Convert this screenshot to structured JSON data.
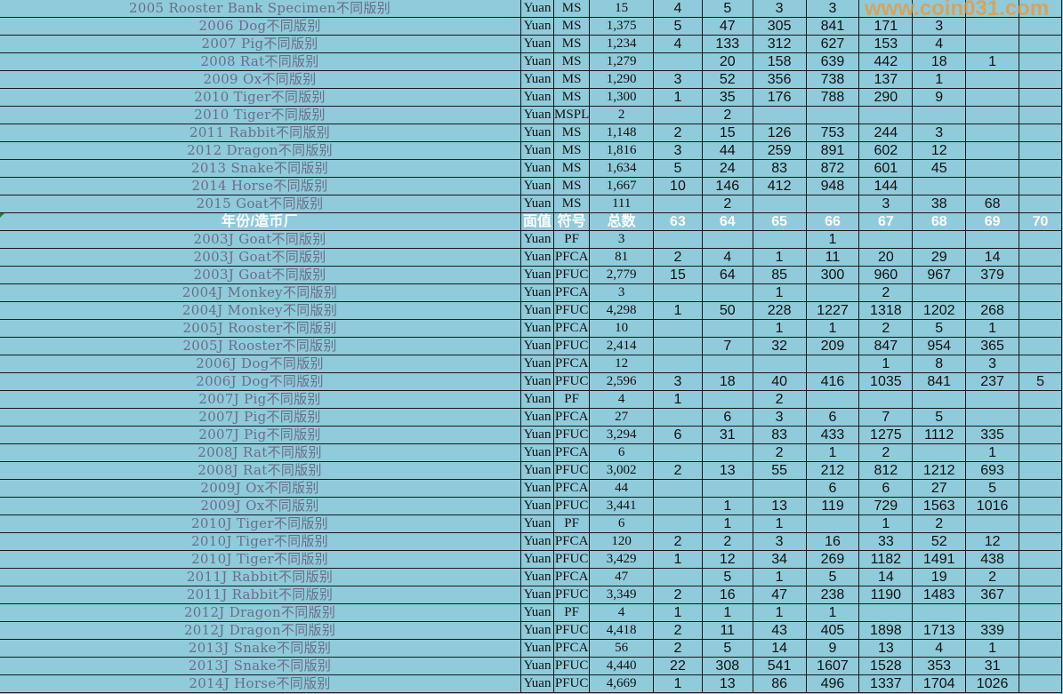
{
  "header": {
    "name": "年份/造币厂",
    "unit": "面值",
    "symbol": "符号",
    "total": "总数",
    "grades": [
      "63",
      "64",
      "65",
      "66",
      "67",
      "68",
      "69",
      "70"
    ]
  },
  "header_row_index": 12,
  "rows": [
    {
      "name": "2005 Rooster Bank Specimen不同版别",
      "unit": "Yuan",
      "symbol": "MS",
      "total": "15",
      "grades": [
        "4",
        "5",
        "3",
        "3",
        "",
        "",
        "",
        ""
      ]
    },
    {
      "name": "2006 Dog不同版别",
      "unit": "Yuan",
      "symbol": "MS",
      "total": "1,375",
      "grades": [
        "5",
        "47",
        "305",
        "841",
        "171",
        "3",
        "",
        ""
      ]
    },
    {
      "name": "2007 Pig不同版别",
      "unit": "Yuan",
      "symbol": "MS",
      "total": "1,234",
      "grades": [
        "4",
        "133",
        "312",
        "627",
        "153",
        "4",
        "",
        ""
      ]
    },
    {
      "name": "2008 Rat不同版别",
      "unit": "Yuan",
      "symbol": "MS",
      "total": "1,279",
      "grades": [
        "",
        "20",
        "158",
        "639",
        "442",
        "18",
        "1",
        ""
      ]
    },
    {
      "name": "2009 Ox不同版别",
      "unit": "Yuan",
      "symbol": "MS",
      "total": "1,290",
      "grades": [
        "3",
        "52",
        "356",
        "738",
        "137",
        "1",
        "",
        ""
      ]
    },
    {
      "name": "2010 Tiger不同版别",
      "unit": "Yuan",
      "symbol": "MS",
      "total": "1,300",
      "grades": [
        "1",
        "35",
        "176",
        "788",
        "290",
        "9",
        "",
        ""
      ]
    },
    {
      "name": "2010 Tiger不同版别",
      "unit": "Yuan",
      "symbol": "MSPL",
      "total": "2",
      "grades": [
        "",
        "2",
        "",
        "",
        "",
        "",
        "",
        ""
      ]
    },
    {
      "name": "2011 Rabbit不同版别",
      "unit": "Yuan",
      "symbol": "MS",
      "total": "1,148",
      "grades": [
        "2",
        "15",
        "126",
        "753",
        "244",
        "3",
        "",
        ""
      ]
    },
    {
      "name": "2012 Dragon不同版别",
      "unit": "Yuan",
      "symbol": "MS",
      "total": "1,816",
      "grades": [
        "3",
        "44",
        "259",
        "891",
        "602",
        "12",
        "",
        ""
      ]
    },
    {
      "name": "2013 Snake不同版别",
      "unit": "Yuan",
      "symbol": "MS",
      "total": "1,634",
      "grades": [
        "5",
        "24",
        "83",
        "872",
        "601",
        "45",
        "",
        ""
      ]
    },
    {
      "name": "2014 Horse不同版别",
      "unit": "Yuan",
      "symbol": "MS",
      "total": "1,667",
      "grades": [
        "10",
        "146",
        "412",
        "948",
        "144",
        "",
        "",
        ""
      ]
    },
    {
      "name": "2015 Goat不同版别",
      "unit": "Yuan",
      "symbol": "MS",
      "total": "111",
      "grades": [
        "",
        "2",
        "",
        "",
        "3",
        "38",
        "68",
        ""
      ]
    },
    {
      "name": "2003J Goat不同版别",
      "unit": "Yuan",
      "symbol": "PF",
      "total": "3",
      "grades": [
        "",
        "",
        "",
        "1",
        "",
        "",
        "",
        ""
      ]
    },
    {
      "name": "2003J Goat不同版别",
      "unit": "Yuan",
      "symbol": "PFCA",
      "total": "81",
      "grades": [
        "2",
        "4",
        "1",
        "11",
        "20",
        "29",
        "14",
        ""
      ]
    },
    {
      "name": "2003J Goat不同版别",
      "unit": "Yuan",
      "symbol": "PFUC",
      "total": "2,779",
      "grades": [
        "15",
        "64",
        "85",
        "300",
        "960",
        "967",
        "379",
        ""
      ]
    },
    {
      "name": "2004J Monkey不同版别",
      "unit": "Yuan",
      "symbol": "PFCA",
      "total": "3",
      "grades": [
        "",
        "",
        "1",
        "",
        "2",
        "",
        "",
        ""
      ]
    },
    {
      "name": "2004J Monkey不同版别",
      "unit": "Yuan",
      "symbol": "PFUC",
      "total": "4,298",
      "grades": [
        "1",
        "50",
        "228",
        "1227",
        "1318",
        "1202",
        "268",
        ""
      ]
    },
    {
      "name": "2005J Rooster不同版别",
      "unit": "Yuan",
      "symbol": "PFCA",
      "total": "10",
      "grades": [
        "",
        "",
        "1",
        "1",
        "2",
        "5",
        "1",
        ""
      ]
    },
    {
      "name": "2005J Rooster不同版别",
      "unit": "Yuan",
      "symbol": "PFUC",
      "total": "2,414",
      "grades": [
        "",
        "7",
        "32",
        "209",
        "847",
        "954",
        "365",
        ""
      ]
    },
    {
      "name": "2006J Dog不同版别",
      "unit": "Yuan",
      "symbol": "PFCA",
      "total": "12",
      "grades": [
        "",
        "",
        "",
        "",
        "1",
        "8",
        "3",
        ""
      ]
    },
    {
      "name": "2006J Dog不同版别",
      "unit": "Yuan",
      "symbol": "PFUC",
      "total": "2,596",
      "grades": [
        "3",
        "18",
        "40",
        "416",
        "1035",
        "841",
        "237",
        "5"
      ]
    },
    {
      "name": "2007J Pig不同版别",
      "unit": "Yuan",
      "symbol": "PF",
      "total": "4",
      "grades": [
        "1",
        "",
        "2",
        "",
        "",
        "",
        "",
        ""
      ]
    },
    {
      "name": "2007J Pig不同版别",
      "unit": "Yuan",
      "symbol": "PFCA",
      "total": "27",
      "grades": [
        "",
        "6",
        "3",
        "6",
        "7",
        "5",
        "",
        ""
      ]
    },
    {
      "name": "2007J Pig不同版别",
      "unit": "Yuan",
      "symbol": "PFUC",
      "total": "3,294",
      "grades": [
        "6",
        "31",
        "83",
        "433",
        "1275",
        "1112",
        "335",
        ""
      ]
    },
    {
      "name": "2008J Rat不同版别",
      "unit": "Yuan",
      "symbol": "PFCA",
      "total": "6",
      "grades": [
        "",
        "",
        "2",
        "1",
        "2",
        "",
        "1",
        ""
      ]
    },
    {
      "name": "2008J Rat不同版别",
      "unit": "Yuan",
      "symbol": "PFUC",
      "total": "3,002",
      "grades": [
        "2",
        "13",
        "55",
        "212",
        "812",
        "1212",
        "693",
        ""
      ]
    },
    {
      "name": "2009J Ox不同版别",
      "unit": "Yuan",
      "symbol": "PFCA",
      "total": "44",
      "grades": [
        "",
        "",
        "",
        "6",
        "6",
        "27",
        "5",
        ""
      ]
    },
    {
      "name": "2009J Ox不同版别",
      "unit": "Yuan",
      "symbol": "PFUC",
      "total": "3,441",
      "grades": [
        "",
        "1",
        "13",
        "119",
        "729",
        "1563",
        "1016",
        ""
      ]
    },
    {
      "name": "2010J Tiger不同版别",
      "unit": "Yuan",
      "symbol": "PF",
      "total": "6",
      "grades": [
        "",
        "1",
        "1",
        "",
        "1",
        "2",
        "",
        ""
      ]
    },
    {
      "name": "2010J Tiger不同版别",
      "unit": "Yuan",
      "symbol": "PFCA",
      "total": "120",
      "grades": [
        "2",
        "2",
        "3",
        "16",
        "33",
        "52",
        "12",
        ""
      ]
    },
    {
      "name": "2010J Tiger不同版别",
      "unit": "Yuan",
      "symbol": "PFUC",
      "total": "3,429",
      "grades": [
        "1",
        "12",
        "34",
        "269",
        "1182",
        "1491",
        "438",
        ""
      ]
    },
    {
      "name": "2011J Rabbit不同版别",
      "unit": "Yuan",
      "symbol": "PFCA",
      "total": "47",
      "grades": [
        "",
        "5",
        "1",
        "5",
        "14",
        "19",
        "2",
        ""
      ]
    },
    {
      "name": "2011J Rabbit不同版别",
      "unit": "Yuan",
      "symbol": "PFUC",
      "total": "3,349",
      "grades": [
        "2",
        "16",
        "47",
        "238",
        "1190",
        "1483",
        "367",
        ""
      ]
    },
    {
      "name": "2012J Dragon不同版别",
      "unit": "Yuan",
      "symbol": "PF",
      "total": "4",
      "grades": [
        "1",
        "1",
        "1",
        "1",
        "",
        "",
        "",
        ""
      ]
    },
    {
      "name": "2012J Dragon不同版别",
      "unit": "Yuan",
      "symbol": "PFUC",
      "total": "4,418",
      "grades": [
        "2",
        "11",
        "43",
        "405",
        "1898",
        "1713",
        "339",
        ""
      ]
    },
    {
      "name": "2013J Snake不同版别",
      "unit": "Yuan",
      "symbol": "PFCA",
      "total": "56",
      "grades": [
        "2",
        "5",
        "14",
        "9",
        "13",
        "4",
        "1",
        ""
      ]
    },
    {
      "name": "2013J Snake不同版别",
      "unit": "Yuan",
      "symbol": "PFUC",
      "total": "4,440",
      "grades": [
        "22",
        "308",
        "541",
        "1607",
        "1528",
        "353",
        "31",
        ""
      ]
    },
    {
      "name": "2014J Horse不同版别",
      "unit": "Yuan",
      "symbol": "PFUC",
      "total": "4,669",
      "grades": [
        "1",
        "13",
        "86",
        "496",
        "1337",
        "1704",
        "1026",
        ""
      ]
    }
  ],
  "watermark": "www.coin031.com",
  "colors": {
    "background": "#8fcbdb",
    "name_text": "#6a6e87",
    "header_text": "#ffffff",
    "watermark": "#f09632"
  }
}
